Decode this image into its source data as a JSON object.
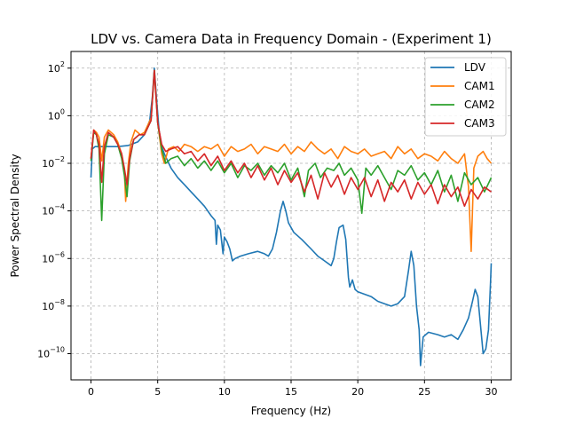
{
  "chart_data": {
    "type": "line",
    "title": "LDV vs. Camera Data in Frequency Domain - (Experiment 1)",
    "xlabel": "Frequency (Hz)",
    "ylabel": "Power Spectral Density",
    "xlim": [
      -1.5,
      31.5
    ],
    "ylim_log10": [
      -11.1,
      2.7
    ],
    "y_scale": "log",
    "grid": true,
    "legend_position": "top-right",
    "x_ticks": [
      0,
      5,
      10,
      15,
      20,
      25,
      30
    ],
    "x_tick_labels": [
      "0",
      "5",
      "10",
      "15",
      "20",
      "25",
      "30"
    ],
    "y_ticks_log10": [
      2,
      0,
      -2,
      -4,
      -6,
      -8,
      -10
    ],
    "y_tick_bases": [
      "10",
      "10",
      "10",
      "10",
      "10",
      "10",
      "10"
    ],
    "y_tick_exponents": [
      "2",
      "0",
      "−2",
      "−4",
      "−6",
      "−8",
      "−10"
    ],
    "series": [
      {
        "name": "LDV",
        "color": "#1f77b4",
        "points": [
          [
            0,
            -2.6
          ],
          [
            0.1,
            -1.4
          ],
          [
            0.3,
            -1.3
          ],
          [
            1,
            -1.3
          ],
          [
            2,
            -1.3
          ],
          [
            2.8,
            -1.25
          ],
          [
            3.5,
            -1.1
          ],
          [
            4.0,
            -0.8
          ],
          [
            4.4,
            -0.2
          ],
          [
            4.6,
            0.8
          ],
          [
            4.75,
            2.0
          ],
          [
            4.9,
            0.8
          ],
          [
            5.1,
            -0.6
          ],
          [
            5.3,
            -1.3
          ],
          [
            5.5,
            -1.6
          ],
          [
            6,
            -2.2
          ],
          [
            6.5,
            -2.6
          ],
          [
            7,
            -2.9
          ],
          [
            7.5,
            -3.2
          ],
          [
            8,
            -3.5
          ],
          [
            8.5,
            -3.8
          ],
          [
            9,
            -4.2
          ],
          [
            9.3,
            -4.4
          ],
          [
            9.4,
            -5.4
          ],
          [
            9.5,
            -4.6
          ],
          [
            9.7,
            -4.8
          ],
          [
            9.9,
            -5.8
          ],
          [
            10.0,
            -5.1
          ],
          [
            10.2,
            -5.3
          ],
          [
            10.4,
            -5.6
          ],
          [
            10.6,
            -6.1
          ],
          [
            10.8,
            -6.0
          ],
          [
            11.2,
            -5.9
          ],
          [
            11.8,
            -5.8
          ],
          [
            12.5,
            -5.7
          ],
          [
            13,
            -5.8
          ],
          [
            13.3,
            -5.9
          ],
          [
            13.6,
            -5.6
          ],
          [
            13.9,
            -4.9
          ],
          [
            14.2,
            -4.0
          ],
          [
            14.4,
            -3.6
          ],
          [
            14.6,
            -4.0
          ],
          [
            14.8,
            -4.5
          ],
          [
            15.2,
            -4.9
          ],
          [
            15.8,
            -5.2
          ],
          [
            16.5,
            -5.6
          ],
          [
            17,
            -5.9
          ],
          [
            17.5,
            -6.1
          ],
          [
            18,
            -6.3
          ],
          [
            18.2,
            -6.0
          ],
          [
            18.4,
            -5.3
          ],
          [
            18.6,
            -4.7
          ],
          [
            18.9,
            -4.6
          ],
          [
            19.1,
            -5.2
          ],
          [
            19.3,
            -6.8
          ],
          [
            19.4,
            -7.2
          ],
          [
            19.6,
            -6.9
          ],
          [
            19.8,
            -7.3
          ],
          [
            20,
            -7.4
          ],
          [
            20.5,
            -7.5
          ],
          [
            21,
            -7.6
          ],
          [
            21.5,
            -7.8
          ],
          [
            22,
            -7.9
          ],
          [
            22.5,
            -8.0
          ],
          [
            23,
            -7.9
          ],
          [
            23.5,
            -7.6
          ],
          [
            23.8,
            -6.5
          ],
          [
            24.0,
            -5.7
          ],
          [
            24.2,
            -6.3
          ],
          [
            24.4,
            -8.0
          ],
          [
            24.6,
            -9.0
          ],
          [
            24.7,
            -10.5
          ],
          [
            24.9,
            -9.3
          ],
          [
            25.3,
            -9.1
          ],
          [
            26,
            -9.2
          ],
          [
            26.5,
            -9.3
          ],
          [
            27,
            -9.2
          ],
          [
            27.5,
            -9.4
          ],
          [
            27.9,
            -9.0
          ],
          [
            28.3,
            -8.5
          ],
          [
            28.6,
            -7.8
          ],
          [
            28.8,
            -7.3
          ],
          [
            29.0,
            -7.6
          ],
          [
            29.2,
            -8.8
          ],
          [
            29.4,
            -10.0
          ],
          [
            29.6,
            -9.8
          ],
          [
            29.8,
            -9.0
          ],
          [
            29.95,
            -7.0
          ],
          [
            30.0,
            -6.2
          ]
        ]
      },
      {
        "name": "CAM1",
        "color": "#ff7f0e",
        "points": [
          [
            0,
            -1.8
          ],
          [
            0.2,
            -0.6
          ],
          [
            0.4,
            -0.7
          ],
          [
            0.6,
            -0.9
          ],
          [
            0.8,
            -1.9
          ],
          [
            1.0,
            -0.9
          ],
          [
            1.3,
            -0.6
          ],
          [
            1.7,
            -0.8
          ],
          [
            2.0,
            -1.1
          ],
          [
            2.3,
            -1.6
          ],
          [
            2.5,
            -2.3
          ],
          [
            2.6,
            -3.6
          ],
          [
            2.8,
            -2.0
          ],
          [
            3.0,
            -1.1
          ],
          [
            3.3,
            -0.6
          ],
          [
            3.7,
            -0.8
          ],
          [
            4.0,
            -0.7
          ],
          [
            4.5,
            -0.1
          ],
          [
            4.75,
            1.9
          ],
          [
            5.0,
            -0.3
          ],
          [
            5.3,
            -1.6
          ],
          [
            5.5,
            -2.0
          ],
          [
            5.8,
            -1.4
          ],
          [
            6.2,
            -1.3
          ],
          [
            6.6,
            -1.5
          ],
          [
            7.0,
            -1.2
          ],
          [
            7.5,
            -1.3
          ],
          [
            8.0,
            -1.5
          ],
          [
            8.5,
            -1.3
          ],
          [
            9.0,
            -1.4
          ],
          [
            9.5,
            -1.2
          ],
          [
            10.0,
            -1.7
          ],
          [
            10.5,
            -1.3
          ],
          [
            11.0,
            -1.5
          ],
          [
            11.5,
            -1.4
          ],
          [
            12.0,
            -1.2
          ],
          [
            12.5,
            -1.6
          ],
          [
            13.0,
            -1.3
          ],
          [
            13.5,
            -1.4
          ],
          [
            14.0,
            -1.5
          ],
          [
            14.5,
            -1.2
          ],
          [
            15.0,
            -1.6
          ],
          [
            15.5,
            -1.3
          ],
          [
            16.0,
            -1.5
          ],
          [
            16.5,
            -1.1
          ],
          [
            17.0,
            -1.4
          ],
          [
            17.5,
            -1.6
          ],
          [
            18.0,
            -1.4
          ],
          [
            18.5,
            -1.8
          ],
          [
            19.0,
            -1.3
          ],
          [
            19.5,
            -1.5
          ],
          [
            20.0,
            -1.6
          ],
          [
            20.5,
            -1.4
          ],
          [
            21.0,
            -1.7
          ],
          [
            21.5,
            -1.6
          ],
          [
            22.0,
            -1.5
          ],
          [
            22.5,
            -1.8
          ],
          [
            23.0,
            -1.3
          ],
          [
            23.5,
            -1.6
          ],
          [
            24.0,
            -1.4
          ],
          [
            24.5,
            -1.8
          ],
          [
            25.0,
            -1.6
          ],
          [
            25.5,
            -1.7
          ],
          [
            26.0,
            -1.9
          ],
          [
            26.5,
            -1.5
          ],
          [
            27.0,
            -1.8
          ],
          [
            27.5,
            -2.0
          ],
          [
            28.0,
            -1.6
          ],
          [
            28.3,
            -3.0
          ],
          [
            28.5,
            -5.7
          ],
          [
            28.7,
            -2.2
          ],
          [
            29.0,
            -1.7
          ],
          [
            29.4,
            -1.5
          ],
          [
            29.7,
            -1.8
          ],
          [
            30.0,
            -2.0
          ]
        ]
      },
      {
        "name": "CAM2",
        "color": "#2ca02c",
        "points": [
          [
            0,
            -1.9
          ],
          [
            0.2,
            -0.7
          ],
          [
            0.4,
            -0.8
          ],
          [
            0.6,
            -1.4
          ],
          [
            0.8,
            -4.4
          ],
          [
            1.0,
            -1.6
          ],
          [
            1.3,
            -0.8
          ],
          [
            1.7,
            -0.9
          ],
          [
            2.0,
            -1.2
          ],
          [
            2.3,
            -1.8
          ],
          [
            2.5,
            -2.5
          ],
          [
            2.7,
            -3.4
          ],
          [
            2.9,
            -1.9
          ],
          [
            3.2,
            -1.0
          ],
          [
            3.6,
            -0.8
          ],
          [
            4.0,
            -0.8
          ],
          [
            4.5,
            -0.2
          ],
          [
            4.75,
            1.9
          ],
          [
            5.0,
            -0.3
          ],
          [
            5.3,
            -1.4
          ],
          [
            5.6,
            -2.0
          ],
          [
            6.0,
            -1.8
          ],
          [
            6.5,
            -1.7
          ],
          [
            7.0,
            -2.1
          ],
          [
            7.5,
            -1.8
          ],
          [
            8.0,
            -2.2
          ],
          [
            8.5,
            -1.9
          ],
          [
            9.0,
            -2.3
          ],
          [
            9.5,
            -1.9
          ],
          [
            10.0,
            -2.4
          ],
          [
            10.5,
            -2.0
          ],
          [
            11.0,
            -2.6
          ],
          [
            11.5,
            -2.1
          ],
          [
            12.0,
            -2.3
          ],
          [
            12.5,
            -2.0
          ],
          [
            13.0,
            -2.5
          ],
          [
            13.5,
            -2.1
          ],
          [
            14.0,
            -2.4
          ],
          [
            14.5,
            -2.0
          ],
          [
            15.0,
            -2.7
          ],
          [
            15.5,
            -2.2
          ],
          [
            16.0,
            -3.4
          ],
          [
            16.3,
            -2.3
          ],
          [
            16.8,
            -2.0
          ],
          [
            17.2,
            -2.6
          ],
          [
            17.7,
            -2.2
          ],
          [
            18.2,
            -2.3
          ],
          [
            18.6,
            -2.0
          ],
          [
            19.0,
            -2.5
          ],
          [
            19.5,
            -2.2
          ],
          [
            20.0,
            -2.7
          ],
          [
            20.3,
            -4.1
          ],
          [
            20.6,
            -2.2
          ],
          [
            21.0,
            -2.5
          ],
          [
            21.5,
            -2.1
          ],
          [
            22.0,
            -2.6
          ],
          [
            22.5,
            -3.1
          ],
          [
            23.0,
            -2.3
          ],
          [
            23.5,
            -2.5
          ],
          [
            24.0,
            -2.1
          ],
          [
            24.5,
            -2.7
          ],
          [
            25.0,
            -2.4
          ],
          [
            25.5,
            -2.9
          ],
          [
            26.0,
            -2.3
          ],
          [
            26.5,
            -3.2
          ],
          [
            27.0,
            -2.5
          ],
          [
            27.5,
            -3.6
          ],
          [
            28.0,
            -2.4
          ],
          [
            28.5,
            -2.9
          ],
          [
            29.0,
            -2.6
          ],
          [
            29.5,
            -3.2
          ],
          [
            30.0,
            -2.6
          ]
        ]
      },
      {
        "name": "CAM3",
        "color": "#d62728",
        "points": [
          [
            0,
            -1.8
          ],
          [
            0.2,
            -0.6
          ],
          [
            0.4,
            -0.8
          ],
          [
            0.6,
            -1.2
          ],
          [
            0.8,
            -2.8
          ],
          [
            1.0,
            -1.3
          ],
          [
            1.3,
            -0.7
          ],
          [
            1.7,
            -0.9
          ],
          [
            2.0,
            -1.2
          ],
          [
            2.3,
            -1.6
          ],
          [
            2.5,
            -2.2
          ],
          [
            2.7,
            -2.9
          ],
          [
            2.9,
            -1.8
          ],
          [
            3.2,
            -1.0
          ],
          [
            3.6,
            -0.8
          ],
          [
            4.0,
            -0.8
          ],
          [
            4.5,
            -0.2
          ],
          [
            4.75,
            1.9
          ],
          [
            5.0,
            -0.3
          ],
          [
            5.3,
            -1.2
          ],
          [
            5.6,
            -1.5
          ],
          [
            6.0,
            -1.4
          ],
          [
            6.5,
            -1.3
          ],
          [
            7.0,
            -1.6
          ],
          [
            7.5,
            -1.5
          ],
          [
            8.0,
            -1.9
          ],
          [
            8.5,
            -1.6
          ],
          [
            9.0,
            -2.1
          ],
          [
            9.5,
            -1.7
          ],
          [
            10.0,
            -2.3
          ],
          [
            10.5,
            -1.9
          ],
          [
            11.0,
            -2.4
          ],
          [
            11.5,
            -2.0
          ],
          [
            12.0,
            -2.6
          ],
          [
            12.5,
            -2.1
          ],
          [
            13.0,
            -2.7
          ],
          [
            13.5,
            -2.2
          ],
          [
            14.0,
            -2.9
          ],
          [
            14.5,
            -2.3
          ],
          [
            15.0,
            -2.8
          ],
          [
            15.5,
            -2.4
          ],
          [
            16.0,
            -3.2
          ],
          [
            16.5,
            -2.5
          ],
          [
            17.0,
            -3.5
          ],
          [
            17.5,
            -2.4
          ],
          [
            18.0,
            -3.0
          ],
          [
            18.5,
            -2.5
          ],
          [
            19.0,
            -3.3
          ],
          [
            19.5,
            -2.6
          ],
          [
            20.0,
            -3.1
          ],
          [
            20.5,
            -2.6
          ],
          [
            21.0,
            -3.4
          ],
          [
            21.5,
            -2.7
          ],
          [
            22.0,
            -3.6
          ],
          [
            22.5,
            -2.8
          ],
          [
            23.0,
            -3.2
          ],
          [
            23.5,
            -2.7
          ],
          [
            24.0,
            -3.5
          ],
          [
            24.5,
            -2.8
          ],
          [
            25.0,
            -3.3
          ],
          [
            25.5,
            -2.9
          ],
          [
            26.0,
            -3.7
          ],
          [
            26.5,
            -2.9
          ],
          [
            27.0,
            -3.4
          ],
          [
            27.5,
            -3.0
          ],
          [
            28.0,
            -3.8
          ],
          [
            28.5,
            -3.1
          ],
          [
            29.0,
            -3.5
          ],
          [
            29.5,
            -3.0
          ],
          [
            30.0,
            -3.2
          ]
        ]
      }
    ]
  }
}
